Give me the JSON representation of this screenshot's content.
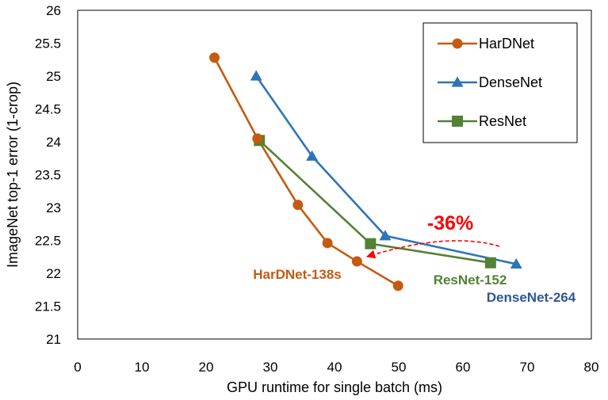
{
  "chart_data": {
    "type": "line",
    "xlabel": "GPU runtime for single batch (ms)",
    "ylabel": "ImageNet top-1 error (1-crop)",
    "xlim": [
      0,
      80
    ],
    "ylim": [
      21,
      26
    ],
    "x_ticks": [
      "0",
      "10",
      "20",
      "30",
      "40",
      "50",
      "60",
      "70",
      "80"
    ],
    "y_ticks": [
      "21",
      "21.5",
      "22",
      "22.5",
      "23",
      "23.5",
      "24",
      "24.5",
      "25",
      "25.5",
      "26"
    ],
    "grid": false,
    "legend_position": "top-right",
    "series": [
      {
        "name": "HarDNet",
        "marker": "circle",
        "color": "#C55A11",
        "points": [
          [
            21.3,
            25.28
          ],
          [
            28.0,
            24.05
          ],
          [
            34.3,
            23.04
          ],
          [
            38.9,
            22.46
          ],
          [
            43.5,
            22.18
          ],
          [
            49.9,
            21.81
          ]
        ]
      },
      {
        "name": "DenseNet",
        "marker": "triangle",
        "color": "#2E75B6",
        "points": [
          [
            27.8,
            25.0
          ],
          [
            36.5,
            23.78
          ],
          [
            47.9,
            22.57
          ],
          [
            68.3,
            22.14
          ]
        ]
      },
      {
        "name": "ResNet",
        "marker": "square",
        "color": "#538135",
        "points": [
          [
            28.3,
            24.02
          ],
          [
            45.6,
            22.45
          ],
          [
            64.3,
            22.16
          ]
        ]
      }
    ],
    "annotations": [
      {
        "id": "hardnet",
        "text": "HarDNet-138s",
        "color": "#C55A11"
      },
      {
        "id": "resnet",
        "text": "ResNet-152",
        "color": "#538135"
      },
      {
        "id": "densenet",
        "text": "DenseNet-264",
        "color": "#2F5597"
      },
      {
        "id": "speedup",
        "text": "-36%",
        "color": "#FF0000"
      }
    ]
  }
}
